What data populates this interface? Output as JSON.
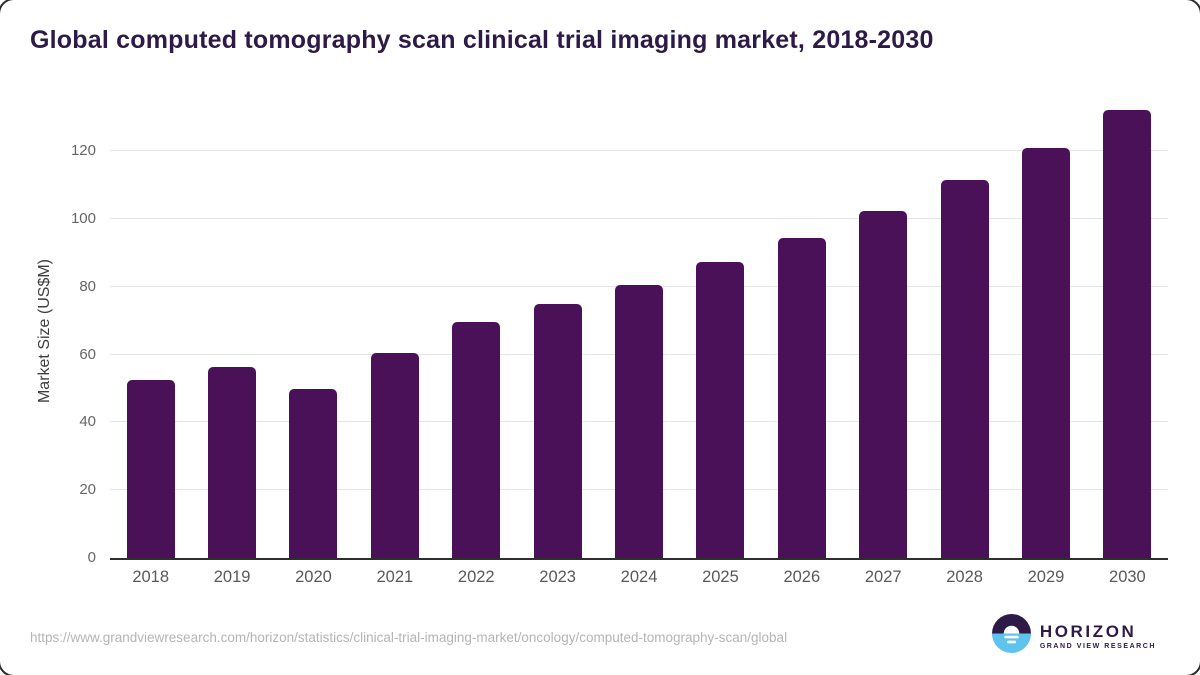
{
  "title": "Global computed tomography scan clinical trial imaging market, 2018-2030",
  "chart_data": {
    "type": "bar",
    "title": "Global computed tomography scan clinical trial imaging market, 2018-2030",
    "categories": [
      "2018",
      "2019",
      "2020",
      "2021",
      "2022",
      "2023",
      "2024",
      "2025",
      "2026",
      "2027",
      "2028",
      "2029",
      "2030"
    ],
    "values": [
      52.5,
      56.4,
      50.0,
      60.4,
      69.5,
      74.8,
      80.6,
      87.2,
      94.4,
      102.4,
      111.5,
      121.0,
      132.2
    ],
    "xlabel": "",
    "ylabel": "Market Size (US$M)",
    "ylim": [
      0,
      135
    ],
    "yticks": [
      0,
      20,
      40,
      60,
      80,
      100,
      120
    ],
    "grid": true,
    "legend_position": "none",
    "bar_color": "#4a1159"
  },
  "footer": {
    "source_url": "https://www.grandviewresearch.com/horizon/statistics/clinical-trial-imaging-market/oncology/computed-tomography-scan/global"
  },
  "logo": {
    "wordmark": "HORIZON",
    "subtitle": "GRAND VIEW RESEARCH"
  },
  "colors": {
    "bar": "#4a1159",
    "title_text": "#2e1a47",
    "axis_line": "#2e2e2e",
    "gridline": "#e7e7e7",
    "tick_text": "#666666",
    "x_label_text": "#58595b",
    "footer_text": "#b5b5b5",
    "logo_purple": "#2e1a47",
    "logo_blue": "#5ec3ee"
  }
}
